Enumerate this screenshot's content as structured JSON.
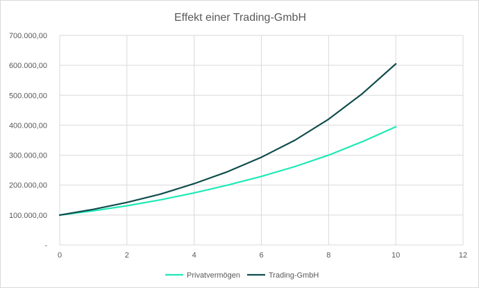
{
  "chart_data": {
    "type": "line",
    "title": "Effekt einer Trading-GmbH",
    "xlabel": "",
    "ylabel": "",
    "xlim": [
      0,
      12
    ],
    "ylim": [
      0,
      700000
    ],
    "x_ticks": [
      "0",
      "2",
      "4",
      "6",
      "8",
      "10",
      "12"
    ],
    "y_ticks": [
      "-",
      "100.000,00",
      "200.000,00",
      "300.000,00",
      "400.000,00",
      "500.000,00",
      "600.000,00",
      "700.000,00"
    ],
    "grid": true,
    "legend_position": "bottom",
    "x": [
      0,
      1,
      2,
      3,
      4,
      5,
      6,
      7,
      8,
      9,
      10
    ],
    "series": [
      {
        "name": "Privatvermögen",
        "color": "#1de9b6",
        "values": [
          100000,
          114000,
          131000,
          151000,
          174000,
          200000,
          229000,
          262000,
          300000,
          345000,
          395000
        ]
      },
      {
        "name": "Trading-GmbH",
        "color": "#0f4c4c",
        "values": [
          100000,
          119000,
          142000,
          170000,
          205000,
          245000,
          293000,
          350000,
          420000,
          505000,
          605000
        ]
      }
    ]
  }
}
